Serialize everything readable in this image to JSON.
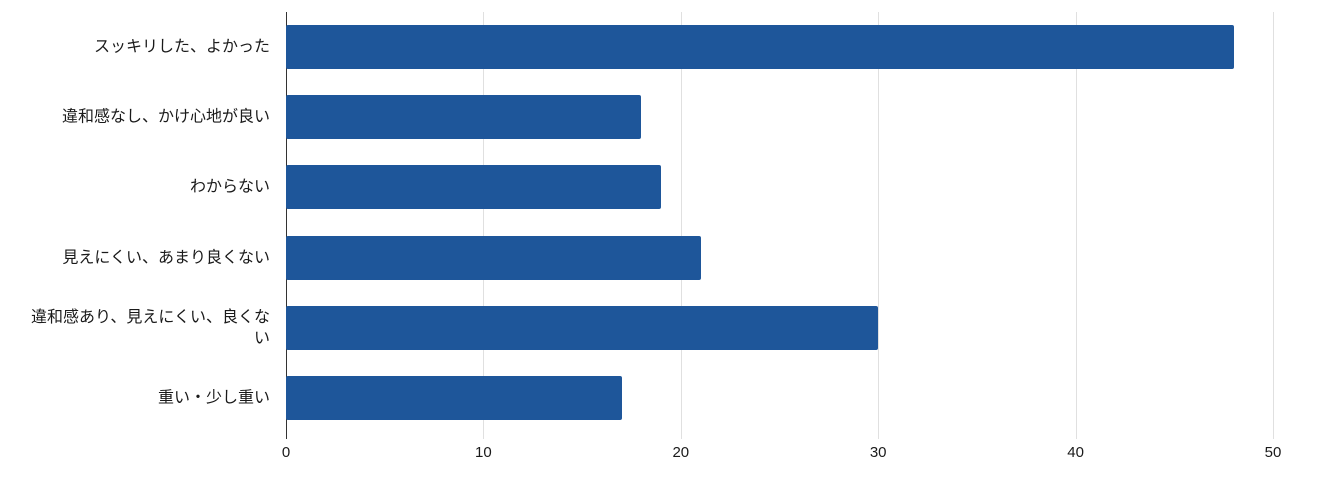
{
  "chart_data": {
    "type": "bar",
    "orientation": "horizontal",
    "title": "",
    "xlabel": "",
    "ylabel": "",
    "categories": [
      "スッキリした、よかった",
      "違和感なし、かけ心地が良い",
      "わからない",
      "見えにくい、あまり良くない",
      "違和感あり、見えにくい、良くない",
      "重い・少し重い"
    ],
    "categories_display": [
      "スッキリした、よかった",
      "違和感なし、かけ心地が良い",
      "わからない",
      "見えにくい、あまり良くない",
      "違和感あり、見えにくい、良くな\nい",
      "重い・少し重い"
    ],
    "values": [
      48,
      18,
      19,
      21,
      30,
      17
    ],
    "xlim": [
      0,
      50
    ],
    "x_ticks": [
      "0",
      "10",
      "20",
      "30",
      "40",
      "50"
    ],
    "x_tick_values": [
      0,
      10,
      20,
      30,
      40,
      50
    ],
    "grid": true,
    "legend": "none",
    "colors": {
      "bar": "#1e569a",
      "gridline": "#e0e0e0",
      "axis": "#333333",
      "label_text": "#1a1a1a",
      "tick_text": "#1a1a1a",
      "background": "#ffffff"
    }
  }
}
